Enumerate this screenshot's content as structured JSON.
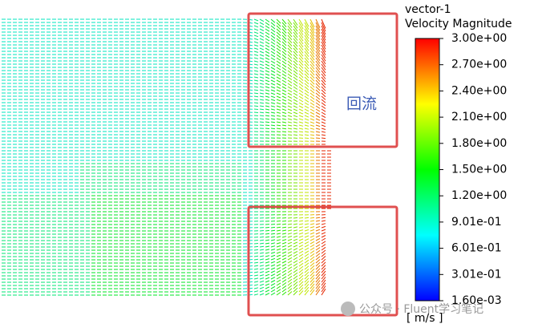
{
  "legend": {
    "title": "vector-1",
    "subtitle": "Velocity Magnitude",
    "labels": [
      "3.00e+00",
      "2.70e+00",
      "2.40e+00",
      "2.10e+00",
      "1.80e+00",
      "1.50e+00",
      "1.20e+00",
      "9.01e-01",
      "6.01e-01",
      "3.01e-01",
      "1.60e-03"
    ],
    "unit": "[ m/s ]"
  },
  "annotation": "回流",
  "watermark": "公众号 · Fluent学习笔记"
}
